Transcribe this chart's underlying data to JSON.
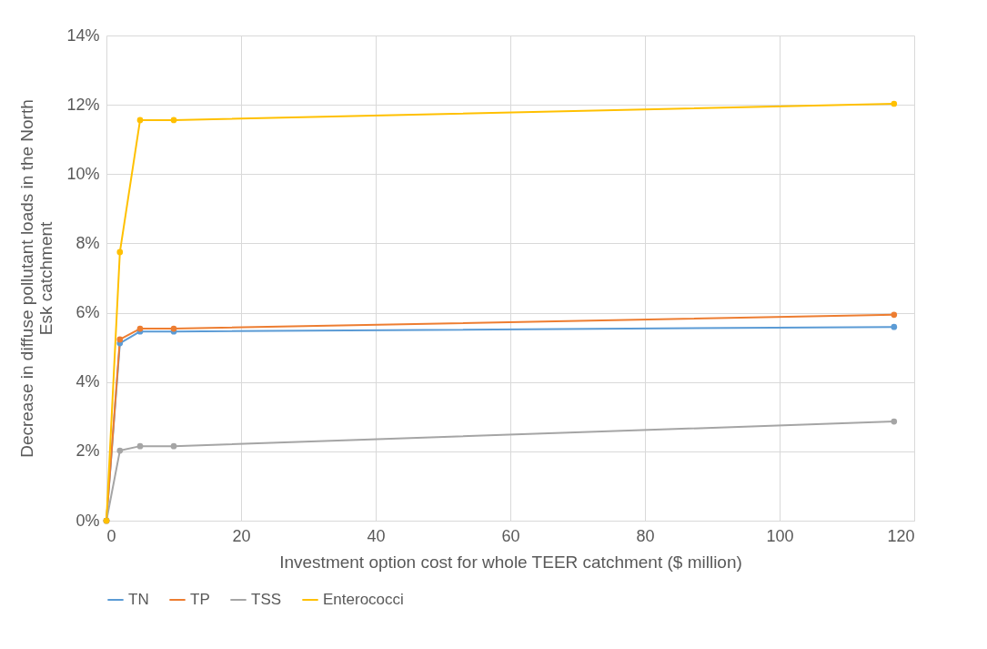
{
  "chart_data": {
    "type": "line",
    "xlabel": "Investment option cost for whole TEER catchment ($ million)",
    "ylabel": "Decrease in diffuse pollutant loads in the North Esk catchment",
    "x": [
      0,
      2,
      5,
      10,
      117
    ],
    "series": [
      {
        "name": "TN",
        "color": "#5b9bd5",
        "values": [
          0,
          5.12,
          5.46,
          5.46,
          5.59
        ]
      },
      {
        "name": "TP",
        "color": "#ed7d31",
        "values": [
          0,
          5.23,
          5.54,
          5.54,
          5.94
        ]
      },
      {
        "name": "TSS",
        "color": "#a5a5a5",
        "values": [
          0,
          2.02,
          2.15,
          2.15,
          2.86
        ]
      },
      {
        "name": "Enterococci",
        "color": "#ffc000",
        "values": [
          0,
          7.75,
          11.56,
          11.56,
          12.03
        ]
      }
    ],
    "xlim": [
      0,
      120
    ],
    "xticks": [
      0,
      20,
      40,
      60,
      80,
      100,
      120
    ],
    "ylim": [
      0,
      14
    ],
    "yticks": [
      {
        "value": 0,
        "label": "0%"
      },
      {
        "value": 2,
        "label": "2%"
      },
      {
        "value": 4,
        "label": "4%"
      },
      {
        "value": 6,
        "label": "6%"
      },
      {
        "value": 8,
        "label": "8%"
      },
      {
        "value": 10,
        "label": "10%"
      },
      {
        "value": 12,
        "label": "12%"
      },
      {
        "value": 14,
        "label": "14%"
      }
    ],
    "grid": true,
    "legend": "bottom",
    "marker": "circle",
    "line_style": "solid"
  }
}
